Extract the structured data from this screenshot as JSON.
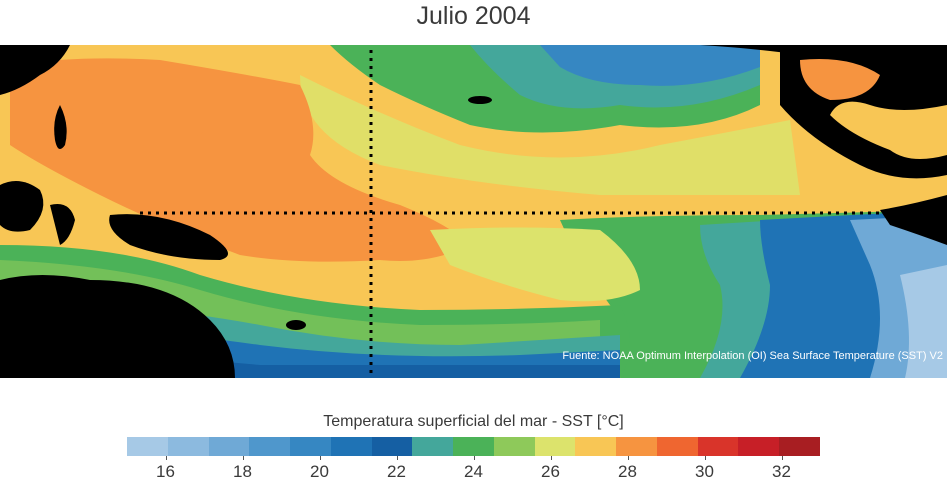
{
  "title": "Julio 2004",
  "source_note": "Fuente: NOAA Optimum Interpolation (OI) Sea Surface Temperature (SST) V2",
  "colorbar": {
    "label": "Temperatura superficial del mar - SST  [°C]",
    "min": 15,
    "max": 33,
    "colors": [
      "#a6c9e6",
      "#8cbadf",
      "#6fa9d6",
      "#4f97cc",
      "#3687c2",
      "#1f73b5",
      "#155fa3",
      "#44a79b",
      "#4bb258",
      "#8ec95a",
      "#dce36c",
      "#f8c655",
      "#f69440",
      "#ef6630",
      "#d9342a",
      "#c71f27",
      "#a81e22"
    ],
    "ticks": [
      "16",
      "18",
      "20",
      "22",
      "24",
      "26",
      "28",
      "30",
      "32"
    ],
    "tick_values": [
      16,
      18,
      20,
      22,
      24,
      26,
      28,
      30,
      32
    ]
  },
  "colors": {
    "land": "#000000",
    "equator_line": "#000000"
  }
}
